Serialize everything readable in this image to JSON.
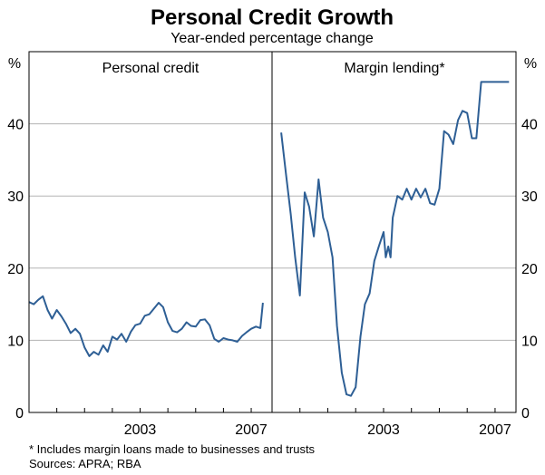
{
  "chart_data": {
    "type": "line",
    "title": "Personal Credit Growth",
    "subtitle": "Year-ended percentage change",
    "y_unit_left": "%",
    "y_unit_right": "%",
    "ylim": [
      0,
      50
    ],
    "yticks": [
      0,
      10,
      20,
      30,
      40
    ],
    "grid": true,
    "line_color": "#2e5f95",
    "panels": [
      {
        "title": "Personal credit",
        "xlim": [
          1999.0,
          2007.75
        ],
        "xtick_labels": [
          {
            "x": 2003.0,
            "label": "2003"
          },
          {
            "x": 2007.0,
            "label": "2007"
          }
        ],
        "series": {
          "name": "Personal credit",
          "x": [
            1999.0,
            1999.17,
            1999.33,
            1999.5,
            1999.67,
            1999.83,
            2000.0,
            2000.17,
            2000.33,
            2000.5,
            2000.67,
            2000.83,
            2001.0,
            2001.17,
            2001.33,
            2001.5,
            2001.67,
            2001.83,
            2002.0,
            2002.17,
            2002.33,
            2002.5,
            2002.67,
            2002.83,
            2003.0,
            2003.17,
            2003.33,
            2003.5,
            2003.67,
            2003.83,
            2004.0,
            2004.17,
            2004.33,
            2004.5,
            2004.67,
            2004.83,
            2005.0,
            2005.17,
            2005.33,
            2005.5,
            2005.67,
            2005.83,
            2006.0,
            2006.17,
            2006.33,
            2006.5,
            2006.67,
            2006.83,
            2007.0,
            2007.17,
            2007.33,
            2007.42
          ],
          "values": [
            15.3,
            15.0,
            15.6,
            16.1,
            14.2,
            13.0,
            14.2,
            13.3,
            12.3,
            11.0,
            11.6,
            10.9,
            9.0,
            7.8,
            8.4,
            8.0,
            9.3,
            8.4,
            10.5,
            10.1,
            10.9,
            9.8,
            11.2,
            12.1,
            12.3,
            13.4,
            13.6,
            14.4,
            15.2,
            14.6,
            12.5,
            11.3,
            11.1,
            11.6,
            12.5,
            12.0,
            11.9,
            12.8,
            12.9,
            12.1,
            10.2,
            9.8,
            10.3,
            10.1,
            10.0,
            9.8,
            10.6,
            11.1,
            11.6,
            11.9,
            11.7,
            15.2
          ]
        }
      },
      {
        "title": "Margin lending*",
        "xlim": [
          1999.0,
          2007.75
        ],
        "xtick_labels": [
          {
            "x": 2003.0,
            "label": "2003"
          },
          {
            "x": 2007.0,
            "label": "2007"
          }
        ],
        "series": {
          "name": "Margin lending*",
          "x": [
            1999.33,
            1999.5,
            1999.67,
            1999.83,
            2000.0,
            2000.17,
            2000.33,
            2000.5,
            2000.67,
            2000.83,
            2001.0,
            2001.17,
            2001.33,
            2001.5,
            2001.67,
            2001.83,
            2002.0,
            2002.17,
            2002.33,
            2002.5,
            2002.67,
            2002.83,
            2003.0,
            2003.08,
            2003.17,
            2003.25,
            2003.33,
            2003.5,
            2003.67,
            2003.83,
            2004.0,
            2004.17,
            2004.33,
            2004.5,
            2004.67,
            2004.83,
            2005.0,
            2005.17,
            2005.33,
            2005.5,
            2005.67,
            2005.83,
            2006.0,
            2006.17,
            2006.33,
            2006.5,
            2006.67,
            2006.83,
            2007.0,
            2007.17,
            2007.33,
            2007.5
          ],
          "values": [
            38.8,
            33.0,
            27.5,
            21.5,
            16.2,
            30.5,
            28.5,
            24.4,
            32.3,
            27.0,
            25.0,
            21.5,
            12.0,
            5.5,
            2.5,
            2.3,
            3.5,
            10.5,
            15.0,
            16.5,
            21.0,
            23.0,
            25.0,
            21.5,
            23.0,
            21.5,
            27.0,
            30.0,
            29.5,
            31.0,
            29.5,
            31.0,
            29.8,
            31.0,
            29.0,
            28.8,
            31.0,
            39.0,
            38.5,
            37.2,
            40.5,
            41.8,
            41.5,
            38.0,
            38.0,
            45.8,
            45.8,
            45.8,
            45.8,
            45.8,
            45.8,
            45.8
          ]
        }
      }
    ]
  },
  "footnote": "*   Includes margin loans made to businesses and trusts",
  "sources": "Sources: APRA; RBA"
}
